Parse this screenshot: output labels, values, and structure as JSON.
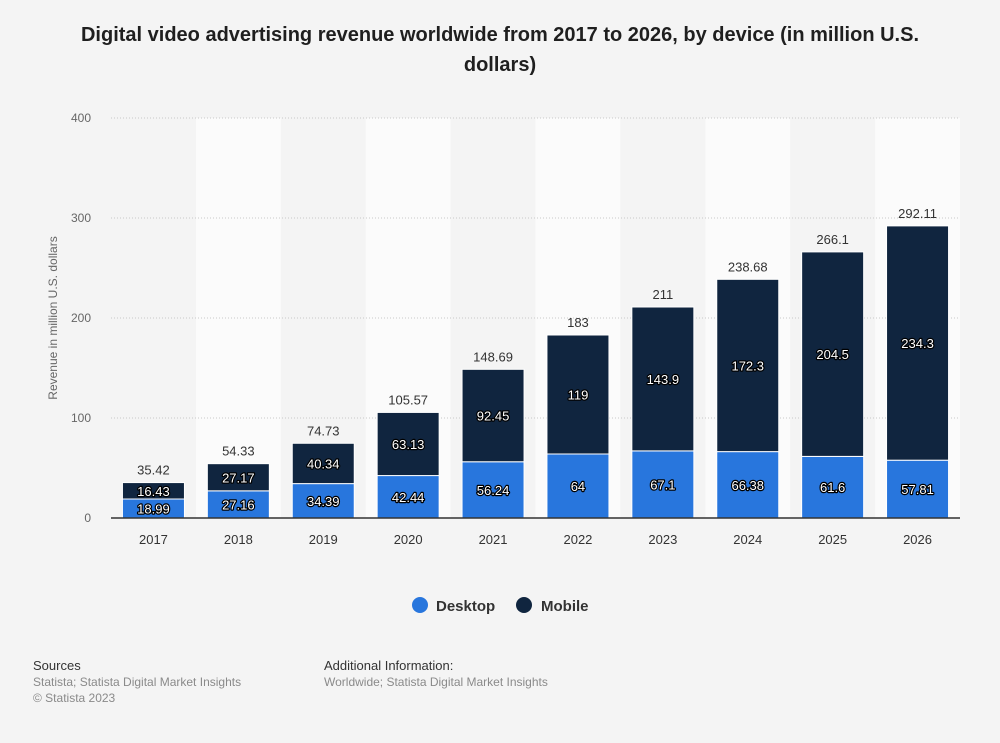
{
  "chart_data": {
    "type": "bar",
    "stacked": true,
    "title": "Digital video advertising revenue worldwide from 2017 to 2026, by device (in million U.S. dollars)",
    "ylabel": "Revenue in million U.S. dollars",
    "ylim": [
      0,
      400
    ],
    "yticks": [
      0,
      100,
      200,
      300,
      400
    ],
    "grid": true,
    "legend_position": "bottom",
    "categories": [
      "2017",
      "2018",
      "2019",
      "2020",
      "2021",
      "2022",
      "2023",
      "2024",
      "2025",
      "2026"
    ],
    "series": [
      {
        "name": "Desktop",
        "color": "#2876dd",
        "values": [
          18.99,
          27.16,
          34.39,
          42.44,
          56.24,
          64,
          67.1,
          66.38,
          61.6,
          57.81
        ],
        "labels": [
          "18.99",
          "27.16",
          "34.39",
          "42.44",
          "56.24",
          "64",
          "67.1",
          "66.38",
          "61.6",
          "57.81"
        ]
      },
      {
        "name": "Mobile",
        "color": "#10253f",
        "values": [
          16.43,
          27.17,
          40.34,
          63.13,
          92.45,
          119,
          143.9,
          172.3,
          204.5,
          234.3
        ],
        "labels": [
          "16.43",
          "27.17",
          "40.34",
          "63.13",
          "92.45",
          "119",
          "143.9",
          "172.3",
          "204.5",
          "234.3"
        ]
      }
    ],
    "totals": [
      "35.42",
      "54.33",
      "74.73",
      "105.57",
      "148.69",
      "183",
      "211",
      "238.68",
      "266.1",
      "292.11"
    ]
  },
  "footer": {
    "sources_heading": "Sources",
    "sources_line1": "Statista; Statista Digital Market Insights",
    "sources_line2": "© Statista 2023",
    "additional_heading": "Additional Information:",
    "additional_text": "Worldwide; Statista Digital Market Insights"
  }
}
